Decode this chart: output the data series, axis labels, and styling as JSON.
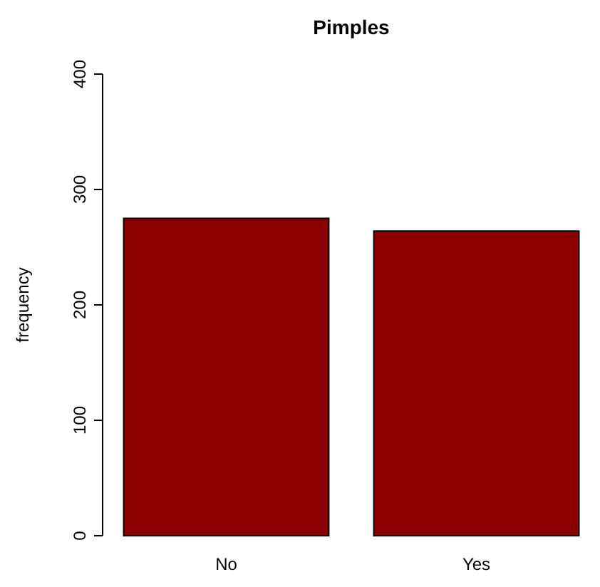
{
  "chart_data": {
    "type": "bar",
    "title": "Pimples",
    "ylabel": "frequency",
    "categories": [
      "No",
      "Yes"
    ],
    "values": [
      275,
      264
    ],
    "color": "#8b0000",
    "ylim": [
      0,
      400
    ],
    "yticks": [
      0,
      100,
      200,
      300,
      400
    ],
    "grid": false
  }
}
